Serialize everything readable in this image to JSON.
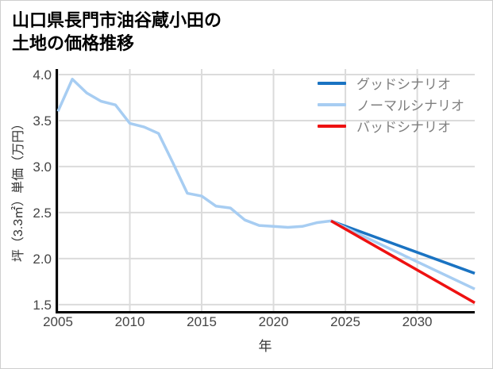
{
  "title": {
    "line1": "山口県長門市油谷蔵小田の",
    "line2": "土地の価格推移"
  },
  "axes": {
    "x_label": "年",
    "y_label": "坪（3.3㎡）単価（万円）"
  },
  "legend": {
    "items": [
      {
        "label": "グッドシナリオ",
        "color": "#1a73c2"
      },
      {
        "label": "ノーマルシナリオ",
        "color": "#a7cdf2"
      },
      {
        "label": "バッドシナリオ",
        "color": "#ee1111"
      }
    ]
  },
  "chart_data": {
    "type": "line",
    "title": "山口県長門市油谷蔵小田の土地の価格推移",
    "xlabel": "年",
    "ylabel": "坪（3.3㎡）単価（万円）",
    "xlim": [
      2005,
      2034
    ],
    "ylim": [
      1.43,
      4.06
    ],
    "x_ticks": [
      2005,
      2010,
      2015,
      2020,
      2025,
      2030
    ],
    "y_ticks": [
      1.5,
      2.0,
      2.5,
      3.0,
      3.5,
      4.0
    ],
    "grid": true,
    "legend_position": "top-right",
    "series": [
      {
        "name": "グッドシナリオ",
        "color": "#1a73c2",
        "x": [
          2024,
          2034
        ],
        "values": [
          2.41,
          1.84
        ]
      },
      {
        "name": "ノーマルシナリオ",
        "color": "#a7cdf2",
        "x": [
          2005,
          2006,
          2007,
          2008,
          2009,
          2010,
          2011,
          2012,
          2013,
          2014,
          2015,
          2016,
          2017,
          2018,
          2019,
          2020,
          2021,
          2022,
          2023,
          2024,
          2034
        ],
        "values": [
          3.6,
          3.95,
          3.8,
          3.71,
          3.67,
          3.47,
          3.43,
          3.36,
          3.04,
          2.71,
          2.68,
          2.57,
          2.55,
          2.42,
          2.36,
          2.35,
          2.34,
          2.35,
          2.39,
          2.41,
          1.67
        ]
      },
      {
        "name": "バッドシナリオ",
        "color": "#ee1111",
        "x": [
          2024,
          2034
        ],
        "values": [
          2.41,
          1.52
        ]
      }
    ]
  }
}
